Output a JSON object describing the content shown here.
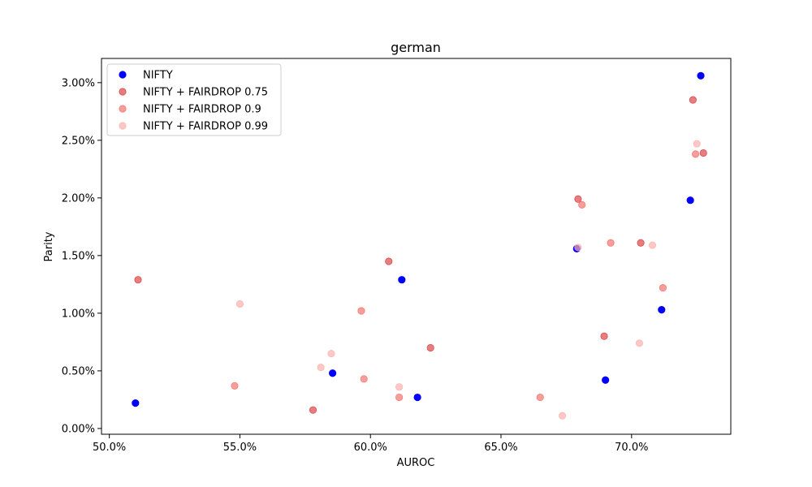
{
  "chart_data": {
    "type": "scatter",
    "title": "german",
    "xlabel": "AUROC",
    "ylabel": "Parity",
    "xlim": [
      0.497,
      0.738
    ],
    "ylim": [
      -0.0005,
      0.0321
    ],
    "x_ticks": [
      0.5,
      0.55,
      0.6,
      0.65,
      0.7
    ],
    "x_tick_labels": [
      "50.0%",
      "55.0%",
      "60.0%",
      "65.0%",
      "70.0%"
    ],
    "y_ticks": [
      0.0,
      0.005,
      0.01,
      0.015,
      0.02,
      0.025,
      0.03
    ],
    "y_tick_labels": [
      "0.00%",
      "0.50%",
      "1.00%",
      "1.50%",
      "2.00%",
      "2.50%",
      "3.00%"
    ],
    "legend_position": "top-left",
    "series": [
      {
        "name": "NIFTY",
        "color": "#0000ff",
        "opacity": 1.0,
        "points": [
          [
            0.51,
            0.0022
          ],
          [
            0.5855,
            0.0048
          ],
          [
            0.612,
            0.0129
          ],
          [
            0.618,
            0.0027
          ],
          [
            0.679,
            0.0156
          ],
          [
            0.69,
            0.0042
          ],
          [
            0.7115,
            0.0103
          ],
          [
            0.7225,
            0.0198
          ],
          [
            0.7265,
            0.0306
          ]
        ]
      },
      {
        "name": "NIFTY + FAIRDROP 0.75",
        "color": "#d62728",
        "opacity": 0.6,
        "points": [
          [
            0.511,
            0.0129
          ],
          [
            0.578,
            0.0016
          ],
          [
            0.607,
            0.0145
          ],
          [
            0.623,
            0.007
          ],
          [
            0.6795,
            0.0199
          ],
          [
            0.6895,
            0.008
          ],
          [
            0.7035,
            0.0161
          ],
          [
            0.7235,
            0.0285
          ],
          [
            0.7275,
            0.0239
          ]
        ]
      },
      {
        "name": "NIFTY + FAIRDROP 0.9",
        "color": "#f25e57",
        "opacity": 0.6,
        "points": [
          [
            0.548,
            0.0037
          ],
          [
            0.5965,
            0.0102
          ],
          [
            0.5975,
            0.0043
          ],
          [
            0.611,
            0.0027
          ],
          [
            0.665,
            0.0027
          ],
          [
            0.681,
            0.0194
          ],
          [
            0.692,
            0.0161
          ],
          [
            0.712,
            0.0122
          ],
          [
            0.7245,
            0.0238
          ]
        ]
      },
      {
        "name": "NIFTY + FAIRDROP 0.99",
        "color": "#fbb0ac",
        "opacity": 0.7,
        "points": [
          [
            0.55,
            0.0108
          ],
          [
            0.581,
            0.0053
          ],
          [
            0.585,
            0.0065
          ],
          [
            0.611,
            0.0036
          ],
          [
            0.6735,
            0.0011
          ],
          [
            0.6795,
            0.0157
          ],
          [
            0.703,
            0.0074
          ],
          [
            0.708,
            0.0159
          ],
          [
            0.725,
            0.0247
          ]
        ]
      }
    ]
  }
}
